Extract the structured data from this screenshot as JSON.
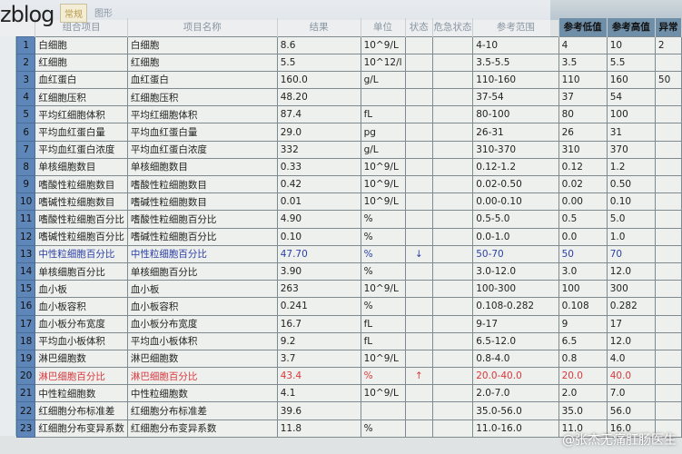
{
  "watermark_top": "zblog",
  "tabs": [
    "常规",
    "图形"
  ],
  "headers": [
    "组合项目",
    "项目名称",
    "结果",
    "单位",
    "状态",
    "危急状态",
    "参考范围",
    "参考低值",
    "参考高值",
    "异常"
  ],
  "rows": [
    [
      "1",
      "白细胞",
      "白细胞",
      "8.6",
      "10^9/L",
      "",
      "",
      "4-10",
      "4",
      "10",
      "2"
    ],
    [
      "2",
      "红细胞",
      "红细胞",
      "5.5",
      "10^12/l",
      "",
      "",
      "3.5-5.5",
      "3.5",
      "5.5",
      ""
    ],
    [
      "3",
      "血红蛋白",
      "血红蛋白",
      "160.0",
      "g/L",
      "",
      "",
      "110-160",
      "110",
      "160",
      "50"
    ],
    [
      "4",
      "红细胞压积",
      "红细胞压积",
      "48.20",
      "",
      "",
      "",
      "37-54",
      "37",
      "54",
      ""
    ],
    [
      "5",
      "平均红细胞体积",
      "平均红细胞体积",
      "87.4",
      "fL",
      "",
      "",
      "80-100",
      "80",
      "100",
      ""
    ],
    [
      "6",
      "平均血红蛋白量",
      "平均血红蛋白量",
      "29.0",
      "pg",
      "",
      "",
      "26-31",
      "26",
      "31",
      ""
    ],
    [
      "7",
      "平均血红蛋白浓度",
      "平均血红蛋白浓度",
      "332",
      "g/L",
      "",
      "",
      "310-370",
      "310",
      "370",
      ""
    ],
    [
      "8",
      "单核细胞数目",
      "单核细胞数目",
      "0.33",
      "10^9/L",
      "",
      "",
      "0.12-1.2",
      "0.12",
      "1.2",
      ""
    ],
    [
      "9",
      "嗜酸性粒细胞数目",
      "嗜酸性粒细胞数目",
      "0.42",
      "10^9/L",
      "",
      "",
      "0.02-0.50",
      "0.02",
      "0.50",
      ""
    ],
    [
      "10",
      "嗜碱性粒细胞数目",
      "嗜碱性粒细胞数目",
      "0.01",
      "10^9/L",
      "",
      "",
      "0.00-0.10",
      "0.00",
      "0.10",
      ""
    ],
    [
      "11",
      "嗜酸性粒细胞百分比",
      "嗜酸性粒细胞百分比",
      "4.90",
      "%",
      "",
      "",
      "0.5-5.0",
      "0.5",
      "5.0",
      ""
    ],
    [
      "12",
      "嗜碱性粒细胞百分比",
      "嗜碱性粒细胞百分比",
      "0.10",
      "%",
      "",
      "",
      "0.0-1.0",
      "0.0",
      "1.0",
      ""
    ],
    [
      "13",
      "中性粒细胞百分比",
      "中性粒细胞百分比",
      "47.70",
      "%",
      "↓",
      "",
      "50-70",
      "50",
      "70",
      ""
    ],
    [
      "14",
      "单核细胞百分比",
      "单核细胞百分比",
      "3.90",
      "%",
      "",
      "",
      "3.0-12.0",
      "3.0",
      "12.0",
      ""
    ],
    [
      "15",
      "血小板",
      "血小板",
      "263",
      "10^9/L",
      "",
      "",
      "100-300",
      "100",
      "300",
      ""
    ],
    [
      "16",
      "血小板容积",
      "血小板容积",
      "0.241",
      "%",
      "",
      "",
      "0.108-0.282",
      "0.108",
      "0.282",
      ""
    ],
    [
      "17",
      "血小板分布宽度",
      "血小板分布宽度",
      "16.7",
      "fL",
      "",
      "",
      "9-17",
      "9",
      "17",
      ""
    ],
    [
      "18",
      "平均血小板体积",
      "平均血小板体积",
      "9.2",
      "fL",
      "",
      "",
      "6.5-12.0",
      "6.5",
      "12.0",
      ""
    ],
    [
      "19",
      "淋巴细胞数",
      "淋巴细胞数",
      "3.7",
      "10^9/L",
      "",
      "",
      "0.8-4.0",
      "0.8",
      "4.0",
      ""
    ],
    [
      "20",
      "淋巴细胞百分比",
      "淋巴细胞百分比",
      "43.4",
      "%",
      "↑",
      "",
      "20.0-40.0",
      "20.0",
      "40.0",
      ""
    ],
    [
      "21",
      "中性粒细胞数",
      "中性粒细胞数",
      "4.1",
      "10^9/L",
      "",
      "",
      "2.0-7.0",
      "2.0",
      "7.0",
      ""
    ],
    [
      "22",
      "红细胞分布标准差",
      "红细胞分布标准差",
      "39.6",
      "",
      "",
      "",
      "35.0-56.0",
      "35.0",
      "56.0",
      ""
    ],
    [
      "23",
      "红细胞分布变异系数",
      "红细胞分布变异系数",
      "11.8",
      "%",
      "",
      "",
      "11.0-16.0",
      "11.0",
      "16.0",
      ""
    ]
  ],
  "row_status": {
    "13": "low",
    "20": "high"
  },
  "colors": {
    "low": "#2b3fa6",
    "high": "#d8383d",
    "row_header": "#5e86b8"
  },
  "watermark_bottom": "@张杰无痛肛肠医生"
}
